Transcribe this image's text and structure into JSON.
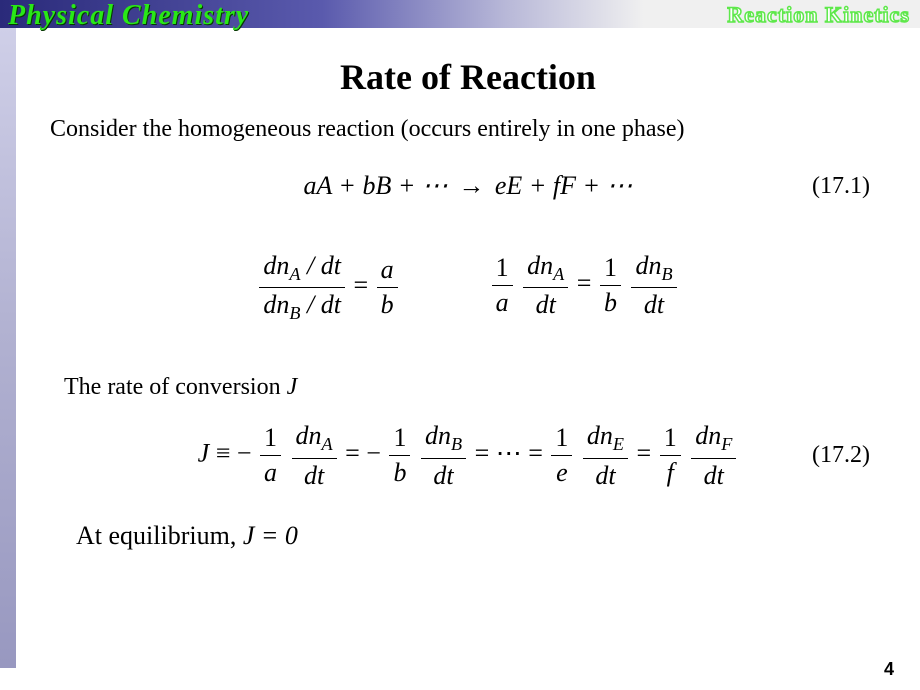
{
  "header": {
    "left_text": "Physical Chemistry",
    "right_text": "Reaction Kinetics",
    "bar_gradient_start": "#2a2a7a",
    "bar_gradient_end": "#f0f0f0",
    "left_color": "#29e817",
    "right_outline": "#5ee84a"
  },
  "title": "Rate of Reaction",
  "intro": "Consider the homogeneous reaction (occurs entirely in one phase)",
  "eq1": {
    "lhs": "aA + bB + ⋯",
    "rhs": "eE + fF + ⋯",
    "number": "(17.1)"
  },
  "ratio_eq": {
    "lhs_num": "dnA / dt",
    "lhs_den": "dnB / dt",
    "rhs_num": "a",
    "rhs_den": "b"
  },
  "split_eq": {
    "l_coef_num": "1",
    "l_coef_den": "a",
    "l_term_num": "dnA",
    "l_term_den": "dt",
    "r_coef_num": "1",
    "r_coef_den": "b",
    "r_term_num": "dnB",
    "r_term_den": "dt"
  },
  "subhead_prefix": "The rate of conversion ",
  "subhead_var": "J",
  "eq2": {
    "symbol": "J",
    "terms": [
      {
        "sign": "−",
        "coef_num": "1",
        "coef_den": "a",
        "d_num": "dnA",
        "d_den": "dt"
      },
      {
        "sign": "−",
        "coef_num": "1",
        "coef_den": "b",
        "d_num": "dnB",
        "d_den": "dt"
      }
    ],
    "dots": "⋯",
    "terms_rhs": [
      {
        "coef_num": "1",
        "coef_den": "e",
        "d_num": "dnE",
        "d_den": "dt"
      },
      {
        "coef_num": "1",
        "coef_den": "f",
        "d_num": "dnF",
        "d_den": "dt"
      }
    ],
    "number": "(17.2)"
  },
  "equilibrium_prefix": "At equilibrium, ",
  "equilibrium_expr": "J = 0",
  "page_number": "4",
  "colors": {
    "background": "#ffffff",
    "text": "#000000",
    "sidebar_top": "#cfcfe8",
    "sidebar_bottom": "#9898c0"
  },
  "fontsize": {
    "title": 36,
    "body": 24,
    "equation": 26,
    "pagenum": 18
  }
}
